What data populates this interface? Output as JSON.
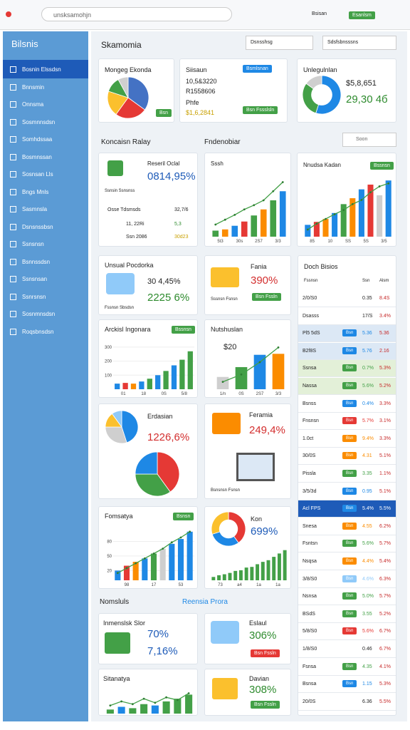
{
  "browser": {
    "url": "unsksamohjn",
    "user": "Bsisan",
    "button": "Esanlsm"
  },
  "sidebar": {
    "title": "Bilsnis",
    "items": [
      "Bosnin Elssdsn",
      "Bnnsmin",
      "Onnsma",
      "Sosmnnsdsn",
      "Somhdssaa",
      "Bosmnssan",
      "Sosnsan Lls",
      "Bngs Mnls",
      "Sasmnsla",
      "Dsnsnssbsn",
      "Ssnsnsn",
      "Bsnnssdsn",
      "Ssnsnsan",
      "Ssnrsnsn",
      "Sosnmnsdsn",
      "Roqsbnsdsn"
    ]
  },
  "header": {
    "title": "Skamomia",
    "filter1": "Dsnsshsg",
    "filter2": "Sdsfsbnsssns"
  },
  "sections": [
    "Koncaisn Ralay",
    "Fndenobiar",
    "Nomsluls",
    "Reensia Prora"
  ],
  "search": "Soon",
  "overview": {
    "title": "Mongeg Ekonda",
    "badge": "Bsn",
    "pie": {
      "values": [
        35,
        25,
        20,
        12,
        8
      ],
      "colors": [
        "#4472c4",
        "#e53935",
        "#fbc02d",
        "#43a047",
        "#cfcfcf"
      ]
    }
  },
  "summary": {
    "title": "Siisaun",
    "lines": [
      "10,5&3220",
      "R1558606",
      "Phfe",
      "$1,6,2841"
    ],
    "button1": "Bsmlsnan",
    "button2": "Bsn Fssslsln"
  },
  "unreg": {
    "title": "Unlegulnlan",
    "value": "$5,8,651",
    "value2": "29,30 4б",
    "donut": {
      "values": [
        55,
        30,
        15
      ],
      "colors": [
        "#1e88e5",
        "#43a047",
        "#cfcfcf"
      ]
    }
  },
  "reseril": {
    "title": "Reseril Oclal",
    "value": "0814,95%",
    "sub": "Ssnsin Ssnsnss",
    "rows": [
      [
        "Osse Tdsmsds",
        "32,7/6"
      ],
      [
        "11, 22Ri",
        "5,3"
      ],
      [
        "Ssn 2086",
        "30d23"
      ]
    ]
  },
  "sssh": {
    "title": "Sssh",
    "chart": {
      "ylim": [
        0,
        100
      ],
      "values": [
        10,
        12,
        18,
        25,
        35,
        45,
        60,
        75
      ],
      "colors": [
        "#43a047",
        "#fb8c00",
        "#1e88e5",
        "#e53935",
        "#43a047",
        "#fb8c00",
        "#43a047",
        "#1e88e5"
      ],
      "line": [
        20,
        28,
        36,
        45,
        52,
        60,
        75,
        90
      ],
      "labels": [
        "5t3",
        "30s",
        "2S7",
        "3/3"
      ]
    }
  },
  "nnudsa": {
    "title": "Nnudsa Kadan",
    "badge": "Bssnsn",
    "chart": {
      "ylim": [
        0,
        100
      ],
      "values": [
        20,
        25,
        30,
        40,
        55,
        65,
        80,
        88,
        70,
        95
      ],
      "colors": [
        "#1e88e5",
        "#e53935",
        "#fb8c00",
        "#1e88e5",
        "#43a047",
        "#fb8c00",
        "#1e88e5",
        "#e53935",
        "#cfcfcf",
        "#1e88e5"
      ],
      "line": [
        12,
        22,
        30,
        38,
        45,
        55,
        62,
        75,
        85,
        90
      ],
      "labels": [
        "85",
        "10",
        "SS",
        "5S",
        "3/5"
      ]
    }
  },
  "unsual": {
    "title": "Unsual Pocdorka",
    "value": "30 4,45%",
    "value2": "2225 6%",
    "sub": "Fssnsn Sbsdsn"
  },
  "fania": {
    "title": "Fania",
    "value": "390%",
    "sub": "Sssnsn Fsnsn",
    "button": "Bsn Fssln"
  },
  "arckisl": {
    "title": "Arckisl Ingonara",
    "badge": "Bssnsn",
    "chart": {
      "ylim": [
        0,
        350
      ],
      "yticks": [
        100,
        200,
        300
      ],
      "values": [
        40,
        45,
        40,
        55,
        75,
        100,
        130,
        170,
        210,
        270
      ],
      "colors": [
        "#1e88e5",
        "#e53935",
        "#fb8c00",
        "#1e88e5",
        "#43a047",
        "#1e88e5",
        "#43a047",
        "#1e88e5",
        "#43a047",
        "#43a047"
      ],
      "labels": [
        "01",
        "18",
        "0S",
        "5/8"
      ]
    }
  },
  "nutsh": {
    "title": "Nutshuslan",
    "value": "$20",
    "chart": {
      "ylim": [
        0,
        100
      ],
      "values": [
        25,
        45,
        70,
        72
      ],
      "colors": [
        "#cfcfcf",
        "#43a047",
        "#1e88e5",
        "#fb8c00"
      ],
      "line": [
        15,
        30,
        55,
        85
      ],
      "labels": [
        "1/n",
        "0S",
        "2S7",
        "3/3"
      ]
    }
  },
  "erdasian": {
    "title": "Erdasian",
    "value": "1226,6%",
    "pie": {
      "values": [
        45,
        30,
        15,
        10
      ],
      "colors": [
        "#1e88e5",
        "#cfcfcf",
        "#fbc02d",
        "#90caf9"
      ]
    },
    "pie2": {
      "values": [
        40,
        35,
        25
      ],
      "colors": [
        "#e53935",
        "#43a047",
        "#1e88e5"
      ]
    }
  },
  "feramia": {
    "title": "Feramia",
    "value": "249,4%",
    "sub": "Bsnsnsn Fsnsn"
  },
  "fomsatya": {
    "title": "Fomsatya",
    "badge": "Bsnsn",
    "chart": {
      "ylim": [
        0,
        110
      ],
      "yticks": [
        20,
        50,
        80
      ],
      "values": [
        20,
        30,
        38,
        45,
        55,
        65,
        75,
        85,
        100
      ],
      "colors": [
        "#1e88e5",
        "#e53935",
        "#fb8c00",
        "#1e88e5",
        "#43a047",
        "#cfcfcf",
        "#1e88e5",
        "#1e88e5",
        "#1e88e5"
      ],
      "line": [
        15,
        25,
        35,
        45,
        55,
        65,
        78,
        88,
        100
      ],
      "labels": [
        "98",
        "17",
        "53"
      ]
    }
  },
  "kon": {
    "title": "Kon",
    "value": "699%",
    "donut": {
      "values": [
        40,
        30,
        30
      ],
      "colors": [
        "#e53935",
        "#1e88e5",
        "#fbc02d"
      ]
    },
    "chart": {
      "ylim": [
        0,
        100
      ],
      "values": [
        10,
        15,
        18,
        22,
        28,
        30,
        38,
        40,
        48,
        55,
        60,
        70,
        80,
        90
      ],
      "colors": [
        "#43a047",
        "#43a047",
        "#43a047",
        "#43a047",
        "#43a047",
        "#43a047",
        "#43a047",
        "#43a047",
        "#43a047",
        "#43a047",
        "#43a047",
        "#43a047",
        "#43a047",
        "#43a047"
      ],
      "labels": [
        "73",
        "a4",
        "1a",
        "1a"
      ]
    }
  },
  "inmensl": {
    "title": "Inmenslsk Slor",
    "value": "70%",
    "value2": "7,16%"
  },
  "sitan": {
    "title": "Sitanatya",
    "chart": {
      "ylim": [
        0,
        100
      ],
      "values": [
        15,
        25,
        20,
        35,
        30,
        45,
        55,
        70
      ],
      "colors": [
        "#43a047",
        "#1e88e5",
        "#43a047",
        "#43a047",
        "#1e88e5",
        "#43a047",
        "#43a047",
        "#43a047"
      ],
      "line": [
        30,
        45,
        35,
        55,
        40,
        60,
        50,
        75
      ]
    }
  },
  "eslaul": {
    "title": "Eslaul",
    "value": "306%",
    "button": "Bsn Fssln"
  },
  "davian": {
    "title": "Davian",
    "value": "308%",
    "button": "Bsn Fssln"
  },
  "table": {
    "title": "Doch Bisios",
    "headers": [
      "Fssnsn",
      "Ssn",
      "Alsm"
    ],
    "rows": [
      {
        "name": "2/0/S0",
        "v1": "0.35",
        "v2": "8.4S"
      },
      {
        "name": "Dsasss",
        "v1": "17/S",
        "v2": "3.4%"
      },
      {
        "name": "Pl5 5dS",
        "badge": "Bsn",
        "color": "#1e88e5",
        "v1": "5.36",
        "v2": "5.36",
        "bg": "#dce8f5"
      },
      {
        "name": "B2f8S",
        "badge": "Bsn",
        "color": "#1e88e5",
        "v1": "5.76",
        "v2": "2.16",
        "bg": "#dce8f5"
      },
      {
        "name": "Ssnsa",
        "badge": "Bsn",
        "color": "#43a047",
        "v1": "0.7%",
        "v2": "5.3%",
        "bg": "#e3f0d8"
      },
      {
        "name": "Nassa",
        "badge": "Bsn",
        "color": "#43a047",
        "v1": "5.6%",
        "v2": "5.2%",
        "bg": "#e3f0d8"
      },
      {
        "name": "Bsnss",
        "badge": "Bsn",
        "color": "#1e88e5",
        "v1": "0.4%",
        "v2": "3.3%"
      },
      {
        "name": "Fnsnsn",
        "badge": "Bsn",
        "color": "#e53935",
        "v1": "5.7%",
        "v2": "3.1%"
      },
      {
        "name": "1.0ct",
        "badge": "Bsn",
        "color": "#fb8c00",
        "v1": "9.4%",
        "v2": "3.3%"
      },
      {
        "name": "30/0S",
        "badge": "Bsn",
        "color": "#fb8c00",
        "v1": "4.31",
        "v2": "5.1%"
      },
      {
        "name": "Pissla",
        "badge": "Bsn",
        "color": "#43a047",
        "v1": "3.35",
        "v2": "1.1%"
      },
      {
        "name": "3/5/3d",
        "badge": "Bsn",
        "color": "#1e88e5",
        "v1": "0.95",
        "v2": "5.1%"
      },
      {
        "name": "Acl FPS",
        "badge": "Bsn",
        "color": "#1e88e5",
        "v1": "5.4%",
        "v2": "5.5%",
        "bg": "#1e5bb8"
      },
      {
        "name": "Snesa",
        "badge": "Bsn",
        "color": "#fb8c00",
        "v1": "4.55",
        "v2": "6.2%"
      },
      {
        "name": "Fsntsn",
        "badge": "Bsn",
        "color": "#43a047",
        "v1": "5.6%",
        "v2": "5.7%"
      },
      {
        "name": "Nsqsa",
        "badge": "Bsn",
        "color": "#fb8c00",
        "v1": "4.4%",
        "v2": "5.4%"
      },
      {
        "name": "3/8/S0",
        "badge": "Bsn",
        "color": "#90caf9",
        "v1": "4.6%",
        "v2": "6.3%"
      },
      {
        "name": "Nsnsa",
        "badge": "Bsn",
        "color": "#43a047",
        "v1": "5.0%",
        "v2": "5.7%"
      },
      {
        "name": "BSdS",
        "badge": "Bsn",
        "color": "#43a047",
        "v1": "3.55",
        "v2": "5.2%"
      },
      {
        "name": "5/8/S0",
        "badge": "Bsn",
        "color": "#e53935",
        "v1": "5.6%",
        "v2": "6.7%"
      },
      {
        "name": "1/8/S0",
        "v1": "0.46",
        "v2": "6.7%"
      },
      {
        "name": "Fsnsa",
        "badge": "Bsn",
        "color": "#43a047",
        "v1": "4.35",
        "v2": "4.1%"
      },
      {
        "name": "Bsnsa",
        "badge": "Bsn",
        "color": "#1e88e5",
        "v1": "1.15",
        "v2": "5.3%"
      },
      {
        "name": "20/0S",
        "v1": "6.36",
        "v2": "5.5%"
      }
    ]
  }
}
